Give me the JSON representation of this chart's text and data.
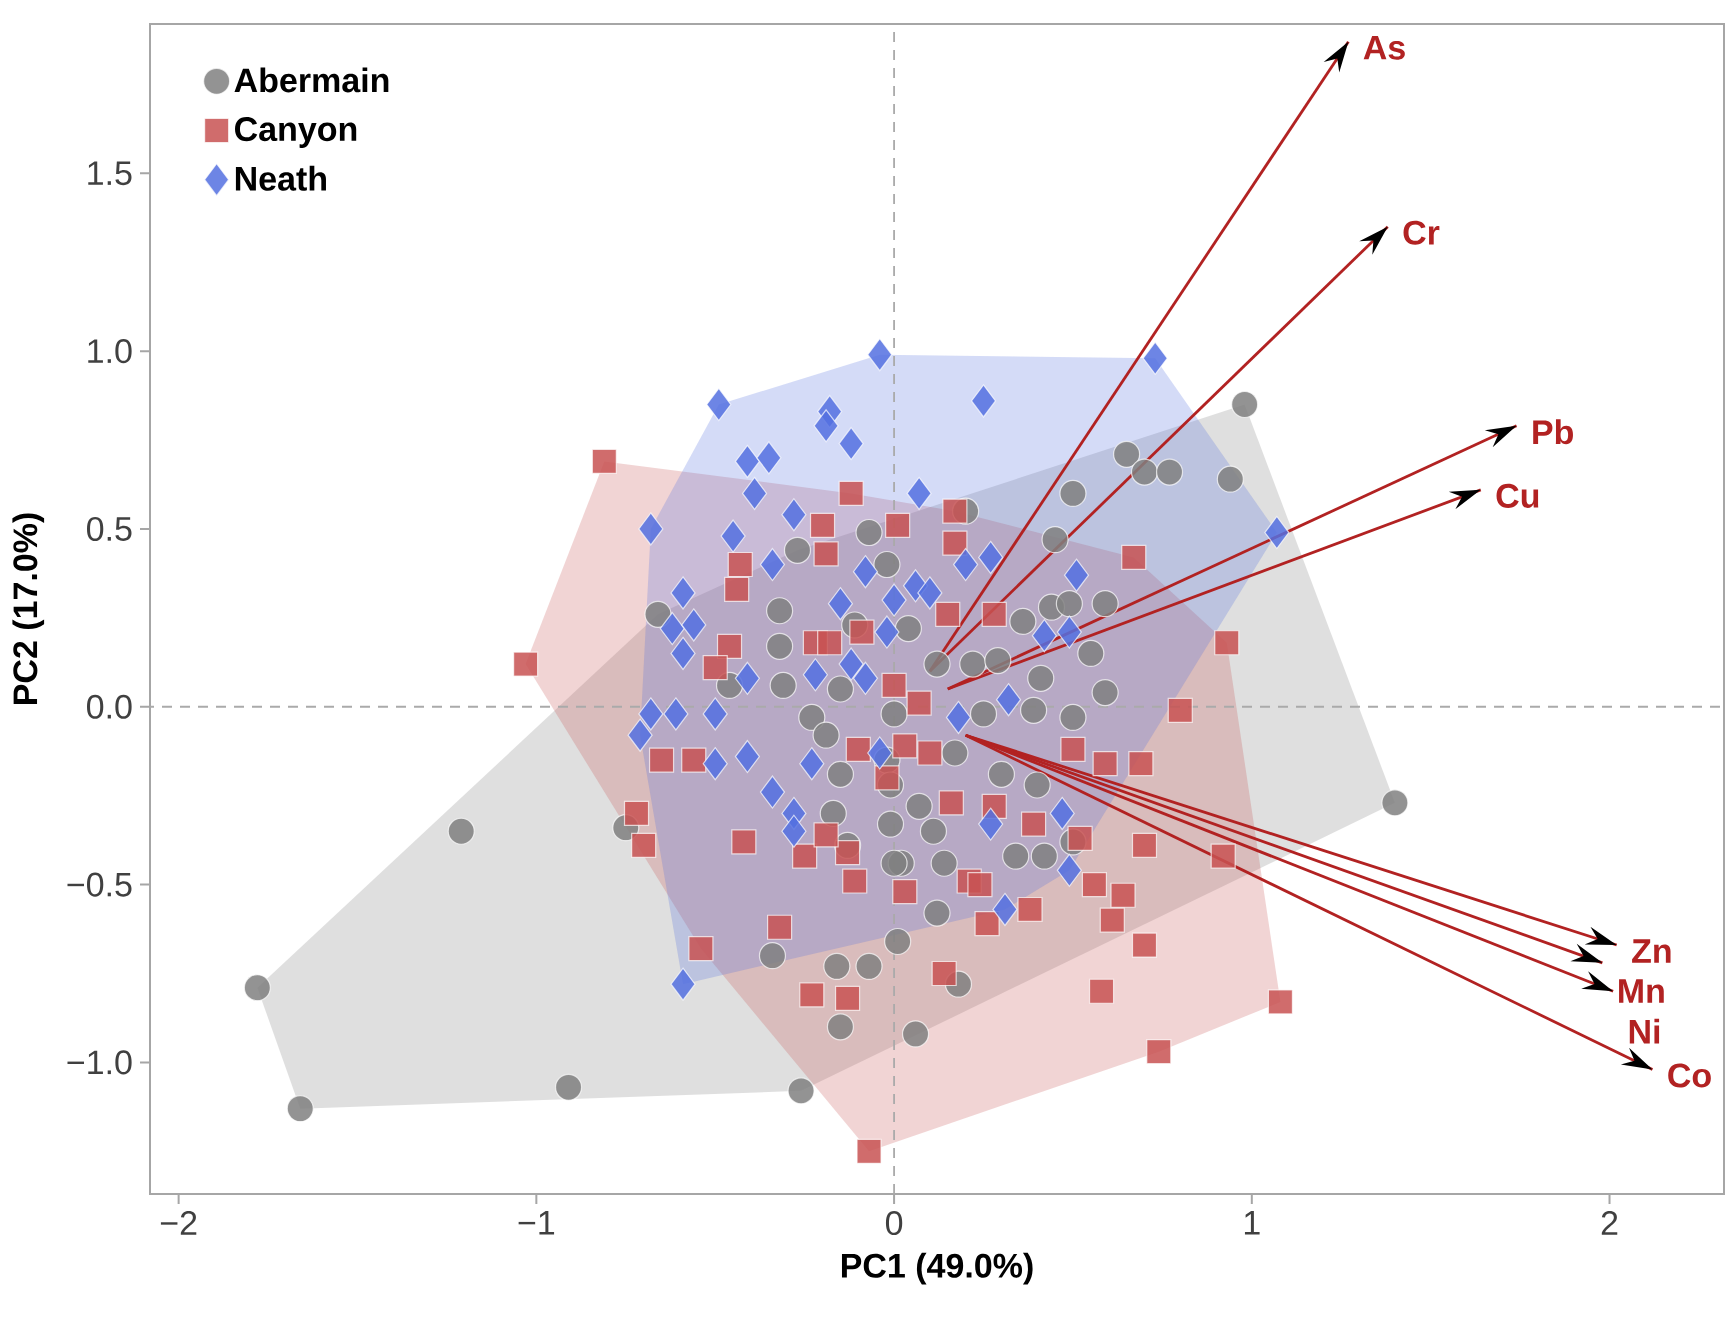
{
  "chart_data": {
    "type": "scatter",
    "xlabel": "PC1 (49.0%)",
    "ylabel": "PC2 (17.0%)",
    "xlim": [
      -2.08,
      2.32
    ],
    "ylim": [
      -1.37,
      1.92
    ],
    "xticks": [
      {
        "value": -2,
        "label": "−2"
      },
      {
        "value": -1,
        "label": "−1"
      },
      {
        "value": 0,
        "label": "0"
      },
      {
        "value": 1,
        "label": "1"
      },
      {
        "value": 2,
        "label": "2"
      }
    ],
    "yticks": [
      {
        "value": -1,
        "label": "−1.0"
      },
      {
        "value": -0.5,
        "label": "−0.5"
      },
      {
        "value": 0,
        "label": "0.0"
      },
      {
        "value": 0.5,
        "label": "0.5"
      },
      {
        "value": 1,
        "label": "1.0"
      },
      {
        "value": 1.5,
        "label": "1.5"
      }
    ],
    "grid": false,
    "legend": "top left",
    "ref_lines": [
      {
        "axis": "x",
        "value": 0,
        "color": "#aaaaaa",
        "line_style": "dashed"
      },
      {
        "axis": "y",
        "value": 0,
        "color": "#aaaaaa",
        "line_style": "dashed"
      }
    ],
    "series": [
      {
        "name": "Abermain",
        "marker": "circle",
        "color": "#808080",
        "x": [
          -1.78,
          -1.66,
          -1.21,
          -0.91,
          -0.26,
          0.06,
          0.98,
          1.4,
          0.65,
          0.7,
          0.77,
          0.94,
          0.5,
          0.2,
          0.45,
          0.44,
          0.49,
          0.59,
          0.36,
          0.55,
          0.41,
          0.59,
          0.5,
          0.39,
          0.22,
          0.29,
          0.12,
          0.04,
          0.25,
          0.17,
          0.3,
          0.4,
          0.07,
          0.11,
          0.34,
          0.42,
          0.5,
          0.02,
          0.14,
          0.12,
          0.18,
          -0.02,
          -0.66,
          -0.27,
          -0.32,
          -0.32,
          -0.46,
          -0.31,
          -0.23,
          -0.19,
          -0.15,
          -0.07,
          -0.02,
          -0.11,
          -0.15,
          -0.17,
          -0.13,
          0.0,
          0.01,
          -0.34,
          -0.16,
          -0.07,
          -0.15,
          -0.75,
          -0.01,
          -0.01,
          0.0
        ],
        "values": [
          -0.79,
          -1.13,
          -0.35,
          -1.07,
          -1.08,
          -0.92,
          0.85,
          -0.27,
          0.71,
          0.66,
          0.66,
          0.64,
          0.6,
          0.55,
          0.47,
          0.28,
          0.29,
          0.29,
          0.24,
          0.15,
          0.08,
          0.04,
          -0.03,
          -0.01,
          0.12,
          0.13,
          0.12,
          0.22,
          -0.02,
          -0.13,
          -0.19,
          -0.22,
          -0.28,
          -0.35,
          -0.42,
          -0.42,
          -0.38,
          -0.44,
          -0.44,
          -0.58,
          -0.78,
          -0.15,
          0.26,
          0.44,
          0.27,
          0.17,
          0.06,
          0.06,
          -0.03,
          -0.08,
          0.05,
          0.49,
          0.4,
          0.23,
          -0.19,
          -0.3,
          -0.39,
          -0.44,
          -0.66,
          -0.7,
          -0.73,
          -0.73,
          -0.9,
          -0.34,
          -0.22,
          -0.33,
          -0.02
        ]
      },
      {
        "name": "Canyon",
        "marker": "square",
        "color": "#c85252",
        "x": [
          -0.81,
          -1.03,
          -0.12,
          -0.2,
          0.01,
          -0.19,
          -0.43,
          -0.44,
          -0.46,
          -0.5,
          -0.22,
          -0.18,
          -0.09,
          0.0,
          -0.65,
          -0.56,
          -0.1,
          0.03,
          -0.72,
          -0.7,
          -0.42,
          -0.25,
          -0.13,
          -0.11,
          0.03,
          -0.02,
          -0.19,
          -0.32,
          -0.54,
          -0.23,
          -0.13,
          -0.07,
          0.17,
          0.17,
          0.67,
          0.28,
          0.15,
          0.93,
          0.8,
          0.07,
          0.5,
          0.59,
          0.69,
          0.1,
          0.16,
          0.28,
          0.39,
          0.52,
          0.7,
          0.92,
          0.21,
          0.24,
          0.56,
          0.64,
          0.38,
          0.61,
          0.26,
          0.7,
          0.14,
          0.58,
          1.08,
          0.74
        ],
        "values": [
          0.69,
          0.12,
          0.6,
          0.51,
          0.51,
          0.43,
          0.4,
          0.33,
          0.17,
          0.11,
          0.18,
          0.18,
          0.21,
          0.06,
          -0.15,
          -0.15,
          -0.12,
          -0.11,
          -0.3,
          -0.39,
          -0.38,
          -0.42,
          -0.41,
          -0.49,
          -0.52,
          -0.2,
          -0.36,
          -0.62,
          -0.68,
          -0.81,
          -0.82,
          -1.25,
          0.55,
          0.46,
          0.42,
          0.26,
          0.26,
          0.18,
          -0.01,
          0.01,
          -0.12,
          -0.16,
          -0.16,
          -0.13,
          -0.27,
          -0.28,
          -0.33,
          -0.37,
          -0.39,
          -0.42,
          -0.49,
          -0.5,
          -0.5,
          -0.53,
          -0.57,
          -0.6,
          -0.61,
          -0.67,
          -0.75,
          -0.8,
          -0.83,
          -0.97
        ]
      },
      {
        "name": "Neath",
        "marker": "diamond",
        "color": "#5470e0",
        "x": [
          -0.04,
          -0.49,
          -0.18,
          -0.19,
          -0.12,
          -0.41,
          -0.35,
          -0.39,
          -0.68,
          -0.28,
          -0.45,
          -0.34,
          -0.59,
          -0.62,
          -0.56,
          -0.59,
          -0.41,
          -0.22,
          -0.12,
          -0.68,
          -0.71,
          -0.61,
          -0.5,
          -0.5,
          -0.41,
          -0.34,
          -0.28,
          -0.28,
          -0.15,
          -0.08,
          -0.04,
          -0.59,
          -0.23,
          -0.08,
          0.0,
          0.07,
          0.73,
          0.25,
          1.07,
          0.27,
          0.2,
          0.51,
          0.06,
          0.1,
          0.42,
          0.49,
          0.32,
          0.18,
          0.47,
          0.27,
          0.49,
          0.31,
          -0.02
        ],
        "values": [
          0.99,
          0.85,
          0.83,
          0.79,
          0.74,
          0.69,
          0.7,
          0.6,
          0.5,
          0.54,
          0.48,
          0.4,
          0.32,
          0.22,
          0.23,
          0.15,
          0.08,
          0.09,
          0.12,
          -0.02,
          -0.08,
          -0.02,
          -0.02,
          -0.16,
          -0.14,
          -0.24,
          -0.3,
          -0.35,
          0.29,
          0.08,
          -0.13,
          -0.78,
          -0.16,
          0.38,
          0.3,
          0.6,
          0.98,
          0.86,
          0.49,
          0.42,
          0.4,
          0.37,
          0.34,
          0.32,
          0.2,
          0.21,
          0.02,
          -0.03,
          -0.3,
          -0.33,
          -0.46,
          -0.57,
          0.21
        ]
      },
      {
        "name": "As",
        "type": "line",
        "color": "#b22222",
        "x": [
          0.1,
          1.27
        ],
        "values": [
          0.1,
          1.87
        ]
      },
      {
        "name": "Cr",
        "type": "line",
        "color": "#b22222",
        "x": [
          0.1,
          1.38
        ],
        "values": [
          0.1,
          1.35
        ]
      },
      {
        "name": "Pb",
        "type": "line",
        "color": "#b22222",
        "x": [
          0.15,
          1.74
        ],
        "values": [
          0.05,
          0.79
        ]
      },
      {
        "name": "Cu",
        "type": "line",
        "color": "#b22222",
        "x": [
          0.15,
          1.64
        ],
        "values": [
          0.05,
          0.61
        ]
      },
      {
        "name": "Zn",
        "type": "line",
        "color": "#b22222",
        "x": [
          0.2,
          2.02
        ],
        "values": [
          -0.08,
          -0.67
        ]
      },
      {
        "name": "Mn",
        "type": "line",
        "color": "#b22222",
        "x": [
          0.2,
          1.98
        ],
        "values": [
          -0.08,
          -0.72
        ]
      },
      {
        "name": "Ni",
        "type": "line",
        "color": "#b22222",
        "x": [
          0.2,
          2.01
        ],
        "values": [
          -0.08,
          -0.8
        ]
      },
      {
        "name": "Co",
        "type": "line",
        "color": "#b22222",
        "x": [
          0.2,
          2.12
        ],
        "values": [
          -0.08,
          -1.02
        ]
      }
    ]
  }
}
